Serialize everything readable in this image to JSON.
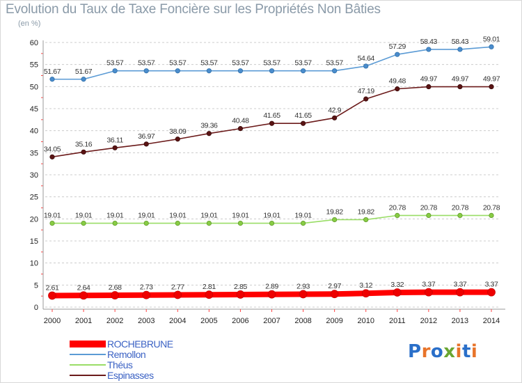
{
  "title": "Evolution du Taux de Taxe Foncière sur les Propriétés Non Bâties",
  "unit_label": "(en %)",
  "logo_text": "Proxiti",
  "colors": {
    "ROCHEBRUNE": "#ff0000",
    "Remollon": "#5b9bd5",
    "Théus": "#99dd66",
    "Espinasses": "#6b1a1a",
    "grid": "#cccccc"
  },
  "chart_data": {
    "type": "line",
    "title": "Evolution du Taux de Taxe Foncière sur les Propriétés Non Bâties",
    "ylabel": "(en %)",
    "xlabel": "",
    "x": [
      2000,
      2001,
      2002,
      2003,
      2004,
      2005,
      2006,
      2007,
      2008,
      2009,
      2010,
      2011,
      2012,
      2013,
      2014
    ],
    "ylim": [
      0,
      60
    ],
    "yticks": [
      0,
      5,
      10,
      15,
      20,
      25,
      30,
      35,
      40,
      45,
      50,
      55,
      60
    ],
    "grid": true,
    "legend_position": "bottom-left",
    "series": [
      {
        "name": "Remollon",
        "values": [
          51.67,
          51.67,
          53.57,
          53.57,
          53.57,
          53.57,
          53.57,
          53.57,
          53.57,
          53.57,
          54.64,
          57.29,
          58.43,
          58.43,
          59.01
        ]
      },
      {
        "name": "Espinasses",
        "values": [
          34.05,
          35.16,
          36.11,
          36.97,
          38.09,
          39.36,
          40.48,
          41.65,
          41.65,
          42.9,
          47.19,
          49.48,
          49.97,
          49.97,
          49.97
        ]
      },
      {
        "name": "Théus",
        "values": [
          19.01,
          19.01,
          19.01,
          19.01,
          19.01,
          19.01,
          19.01,
          19.01,
          19.01,
          19.82,
          19.82,
          20.78,
          20.78,
          20.78,
          20.78
        ]
      },
      {
        "name": "ROCHEBRUNE",
        "values": [
          2.61,
          2.64,
          2.68,
          2.73,
          2.77,
          2.81,
          2.85,
          2.89,
          2.93,
          2.97,
          3.12,
          3.32,
          3.37,
          3.37,
          3.37
        ]
      }
    ],
    "data_label_text": {
      "Remollon": [
        "51.67",
        "51.67",
        "53.57",
        "53.57",
        "53.57",
        "53.57",
        "53.57",
        "53.57",
        "53.57",
        "53.57",
        "54.64",
        "57.29",
        "58.43",
        "58.43",
        "59.01"
      ],
      "Espinasses": [
        "34.05",
        "35.16",
        "36.11",
        "36.97",
        "38.09",
        "39.36",
        "40.48",
        "41.65",
        "41.65",
        "42.9",
        "47.19",
        "49.48",
        "49.97",
        "49.97",
        "49.97"
      ],
      "Théus": [
        "19.01",
        "19.01",
        "19.01",
        "19.01",
        "19.01",
        "19.01",
        "19.01",
        "19.01",
        "19.01",
        "19.82",
        "19.82",
        "20.78",
        "20.78",
        "20.78",
        "20.78"
      ],
      "ROCHEBRUNE": [
        "2.61",
        "2.64",
        "2.68",
        "2.73",
        "2.77",
        "2.81",
        "2.85",
        "2.89",
        "2.93",
        "2.97",
        "3.12",
        "3.32",
        "3.37",
        "3.37",
        "3.37"
      ]
    }
  },
  "legend": {
    "items": [
      {
        "name": "ROCHEBRUNE"
      },
      {
        "name": "Remollon"
      },
      {
        "name": "Théus"
      },
      {
        "name": "Espinasses"
      }
    ]
  }
}
